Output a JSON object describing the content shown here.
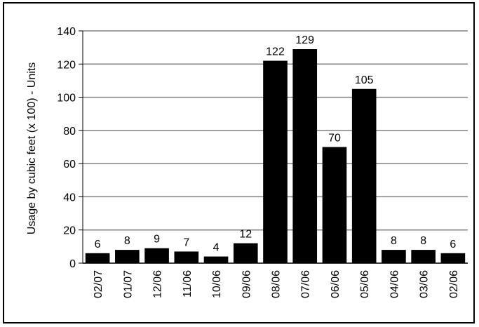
{
  "chart_data": {
    "type": "bar",
    "title": "",
    "xlabel": "",
    "ylabel": "Usage by cubic feet  (x 100) - Units",
    "categories": [
      "02/07",
      "01/07",
      "12/06",
      "11/06",
      "10/06",
      "09/06",
      "08/06",
      "07/06",
      "06/06",
      "05/06",
      "04/06",
      "03/06",
      "02/06"
    ],
    "values": [
      6,
      8,
      9,
      7,
      4,
      12,
      122,
      129,
      70,
      105,
      8,
      8,
      6
    ],
    "ylim": [
      0,
      140
    ],
    "yticks": [
      0,
      20,
      40,
      60,
      80,
      100,
      120,
      140
    ],
    "grid": true,
    "legend": "none",
    "bar_color": "#000000",
    "grid_color": "#808080"
  }
}
